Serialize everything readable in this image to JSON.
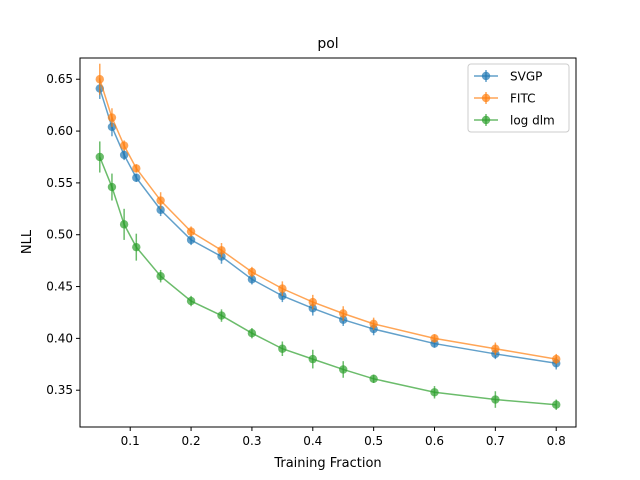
{
  "chart_data": {
    "type": "line",
    "title": "pol",
    "xlabel": "Training Fraction",
    "ylabel": "NLL",
    "xlim": [
      0.0175,
      0.8325
    ],
    "ylim": [
      0.3145,
      0.6705
    ],
    "xticks": [
      0.1,
      0.2,
      0.3,
      0.4,
      0.5,
      0.6,
      0.7,
      0.8
    ],
    "xtick_labels": [
      "0.1",
      "0.2",
      "0.3",
      "0.4",
      "0.5",
      "0.6",
      "0.7",
      "0.8"
    ],
    "yticks": [
      0.35,
      0.4,
      0.45,
      0.5,
      0.55,
      0.6,
      0.65
    ],
    "ytick_labels": [
      "0.35",
      "0.40",
      "0.45",
      "0.50",
      "0.55",
      "0.60",
      "0.65"
    ],
    "grid": false,
    "legend_position": "top-right",
    "x": [
      0.05,
      0.07,
      0.09,
      0.11,
      0.15,
      0.2,
      0.25,
      0.3,
      0.35,
      0.4,
      0.45,
      0.5,
      0.6,
      0.7,
      0.8
    ],
    "series": [
      {
        "name": "SVGP",
        "color": "#1f77b4",
        "values": [
          0.641,
          0.604,
          0.577,
          0.555,
          0.524,
          0.495,
          0.479,
          0.457,
          0.441,
          0.429,
          0.418,
          0.409,
          0.395,
          0.385,
          0.376
        ],
        "errors": [
          0.01,
          0.009,
          0.005,
          0.004,
          0.006,
          0.005,
          0.007,
          0.005,
          0.006,
          0.007,
          0.006,
          0.006,
          0.004,
          0.005,
          0.006
        ]
      },
      {
        "name": "FITC",
        "color": "#ff7f0e",
        "values": [
          0.65,
          0.613,
          0.586,
          0.564,
          0.533,
          0.503,
          0.485,
          0.464,
          0.448,
          0.435,
          0.424,
          0.414,
          0.4,
          0.39,
          0.38
        ],
        "errors": [
          0.015,
          0.009,
          0.005,
          0.004,
          0.008,
          0.005,
          0.007,
          0.005,
          0.007,
          0.007,
          0.007,
          0.006,
          0.004,
          0.006,
          0.005
        ]
      },
      {
        "name": "log dlm",
        "color": "#2ca02c",
        "values": [
          0.575,
          0.546,
          0.51,
          0.488,
          0.46,
          0.436,
          0.422,
          0.405,
          0.39,
          0.38,
          0.37,
          0.361,
          0.348,
          0.341,
          0.336
        ],
        "errors": [
          0.015,
          0.013,
          0.015,
          0.013,
          0.006,
          0.005,
          0.006,
          0.005,
          0.007,
          0.009,
          0.008,
          0.004,
          0.006,
          0.008,
          0.005
        ]
      }
    ]
  }
}
